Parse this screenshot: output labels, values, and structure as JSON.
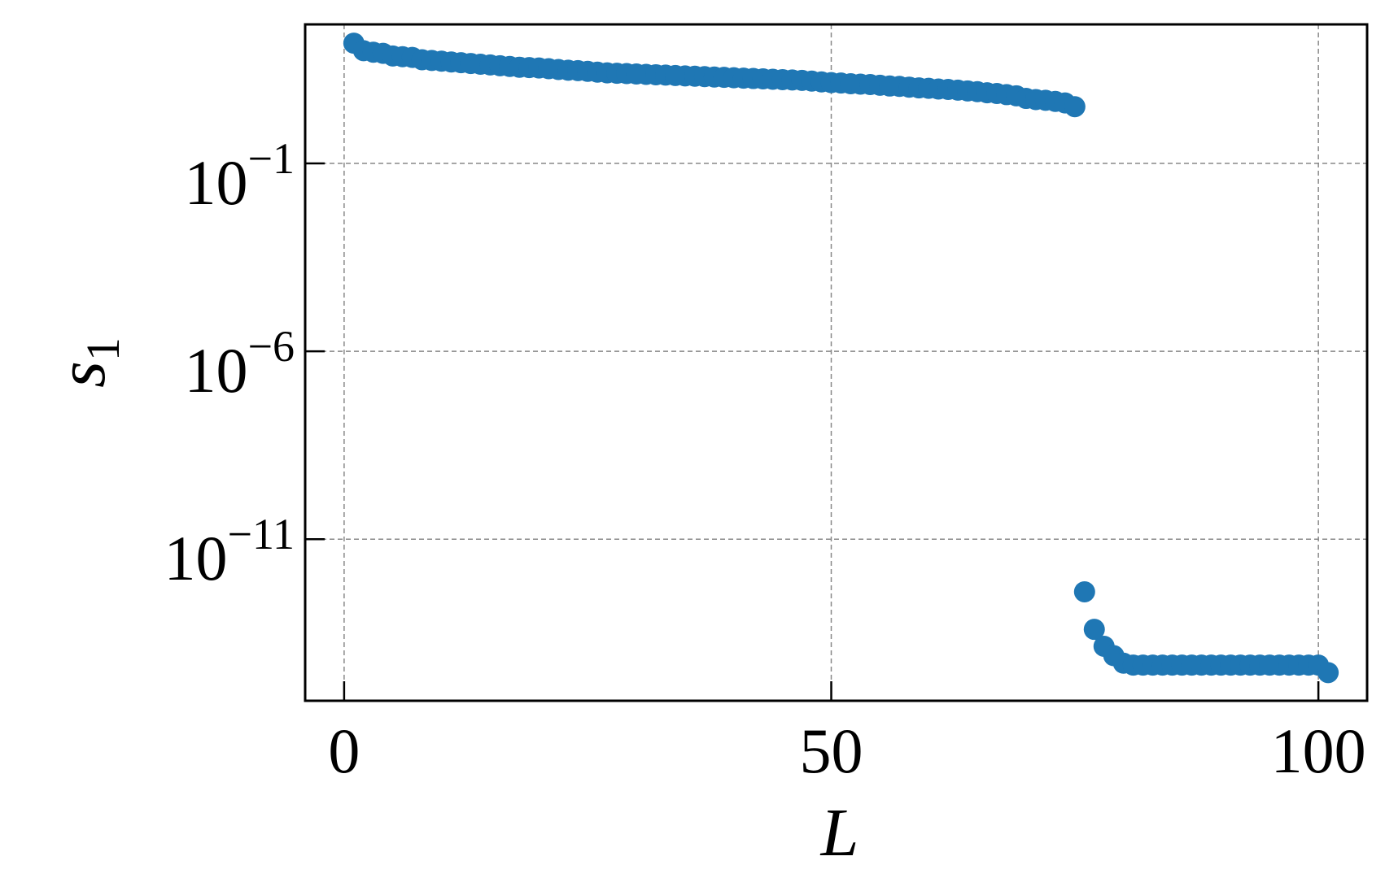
{
  "chart_data": {
    "type": "scatter",
    "title": "",
    "xlabel": "L",
    "ylabel": {
      "base": "s",
      "subscript": "1"
    },
    "x_scale": "linear",
    "y_scale": "log",
    "xlim": [
      -4,
      105
    ],
    "ylim_log10": [
      -15.3,
      2.7
    ],
    "x_ticks": [
      {
        "value": 0,
        "label": "0"
      },
      {
        "value": 50,
        "label": "50"
      },
      {
        "value": 100,
        "label": "100"
      }
    ],
    "y_ticks": [
      {
        "exp": -1,
        "base": "10",
        "exponent": "−1"
      },
      {
        "exp": -6,
        "base": "10",
        "exponent": "−6"
      },
      {
        "exp": -11,
        "base": "10",
        "exponent": "−11"
      }
    ],
    "grid": true,
    "marker_color": "#1f77b4",
    "series": [
      {
        "x": [
          1,
          2,
          3,
          4,
          5,
          6,
          7,
          8,
          9,
          10,
          11,
          12,
          13,
          14,
          15,
          16,
          17,
          18,
          19,
          20,
          21,
          22,
          23,
          24,
          25,
          26,
          27,
          28,
          29,
          30,
          31,
          32,
          33,
          34,
          35,
          36,
          37,
          38,
          39,
          40,
          41,
          42,
          43,
          44,
          45,
          46,
          47,
          48,
          49,
          50,
          51,
          52,
          53,
          54,
          55,
          56,
          57,
          58,
          59,
          60,
          61,
          62,
          63,
          64,
          65,
          66,
          67,
          68,
          69,
          70,
          71,
          72,
          73,
          74,
          75,
          76,
          77,
          78,
          79,
          80,
          81,
          82,
          83,
          84,
          85,
          86,
          87,
          88,
          89,
          90,
          91,
          92,
          93,
          94,
          95,
          96,
          97,
          98,
          99,
          100,
          101
        ],
        "log10_y": [
          2.2,
          2.0,
          1.96,
          1.93,
          1.86,
          1.84,
          1.82,
          1.76,
          1.74,
          1.72,
          1.7,
          1.68,
          1.66,
          1.64,
          1.62,
          1.6,
          1.58,
          1.56,
          1.55,
          1.54,
          1.52,
          1.5,
          1.48,
          1.47,
          1.45,
          1.43,
          1.41,
          1.4,
          1.39,
          1.38,
          1.37,
          1.36,
          1.35,
          1.34,
          1.33,
          1.32,
          1.31,
          1.3,
          1.29,
          1.28,
          1.27,
          1.26,
          1.25,
          1.24,
          1.23,
          1.22,
          1.21,
          1.19,
          1.17,
          1.15,
          1.14,
          1.12,
          1.11,
          1.1,
          1.08,
          1.06,
          1.05,
          1.03,
          1.01,
          1.0,
          0.98,
          0.97,
          0.95,
          0.93,
          0.91,
          0.88,
          0.86,
          0.83,
          0.8,
          0.73,
          0.7,
          0.68,
          0.65,
          0.61,
          0.51,
          -12.4,
          -13.4,
          -13.85,
          -14.1,
          -14.3,
          -14.35,
          -14.35,
          -14.35,
          -14.35,
          -14.35,
          -14.35,
          -14.35,
          -14.35,
          -14.35,
          -14.35,
          -14.35,
          -14.35,
          -14.35,
          -14.35,
          -14.35,
          -14.35,
          -14.35,
          -14.35,
          -14.35,
          -14.35,
          -14.55
        ]
      }
    ]
  }
}
